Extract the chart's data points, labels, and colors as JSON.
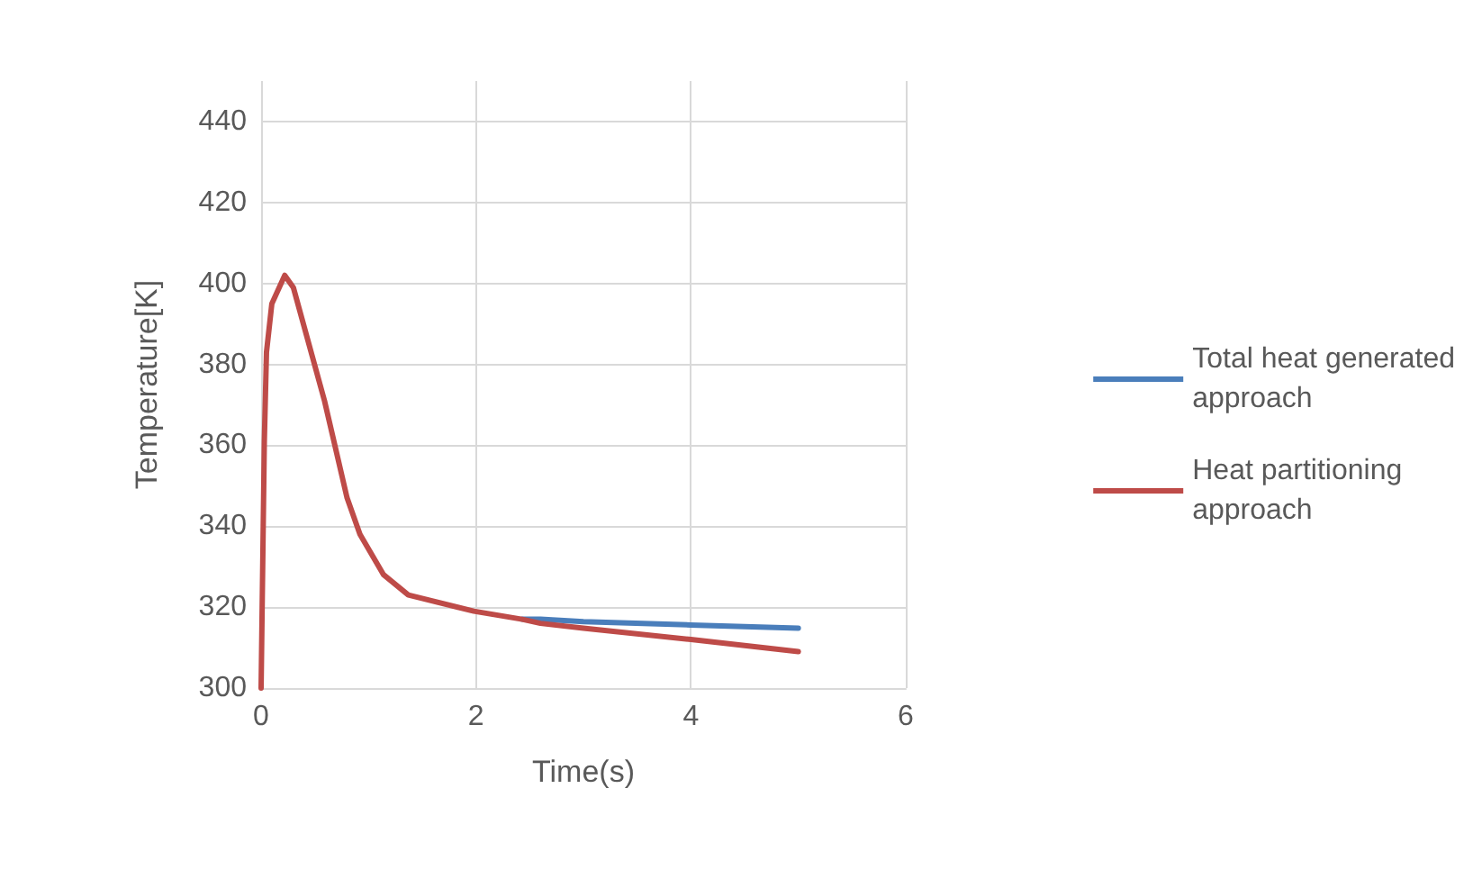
{
  "chart_data": {
    "type": "line",
    "xlabel": "Time(s)",
    "ylabel": "Temperature[K]",
    "xlim": [
      0,
      6
    ],
    "xticks": [
      0,
      2,
      4,
      6
    ],
    "ylim": [
      300,
      450
    ],
    "yticks": [
      300,
      320,
      340,
      360,
      380,
      400,
      420,
      440
    ],
    "grid": true,
    "legend": "right",
    "marker": "none",
    "line_style": "solid",
    "series": [
      {
        "name": "Total heat generated approach",
        "color": "#4a7ebb",
        "x": [
          2.43,
          2.6,
          3,
          4,
          5
        ],
        "values": [
          317,
          317,
          316.4,
          315.6,
          314.8
        ]
      },
      {
        "name": "Heat partitioning approach",
        "color": "#be4b48",
        "x": [
          0,
          0.03,
          0.05,
          0.1,
          0.22,
          0.3,
          0.59,
          0.8,
          0.92,
          1.14,
          1.37,
          1.98,
          2.43,
          2.6,
          3,
          4,
          5
        ],
        "values": [
          300,
          361,
          383,
          395,
          402,
          399,
          371,
          347,
          338,
          328,
          323,
          319,
          317,
          316,
          314.8,
          312,
          309
        ]
      }
    ]
  }
}
